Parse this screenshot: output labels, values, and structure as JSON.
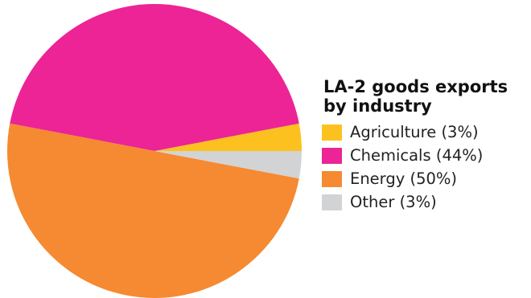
{
  "chart_data": {
    "type": "pie",
    "title": "LA-2 goods exports\nby industry",
    "slices": [
      {
        "label": "Agriculture (3%)",
        "name": "Agriculture",
        "value": 3,
        "color": "#FDC11F"
      },
      {
        "label": "Chemicals (44%)",
        "name": "Chemicals",
        "value": 44,
        "color": "#EC2495"
      },
      {
        "label": "Energy (50%)",
        "name": "Energy",
        "value": 50,
        "color": "#F58A32"
      },
      {
        "label": "Other (3%)",
        "name": "Other",
        "value": 3,
        "color": "#D2D3D4"
      }
    ],
    "legend_position": "right"
  }
}
